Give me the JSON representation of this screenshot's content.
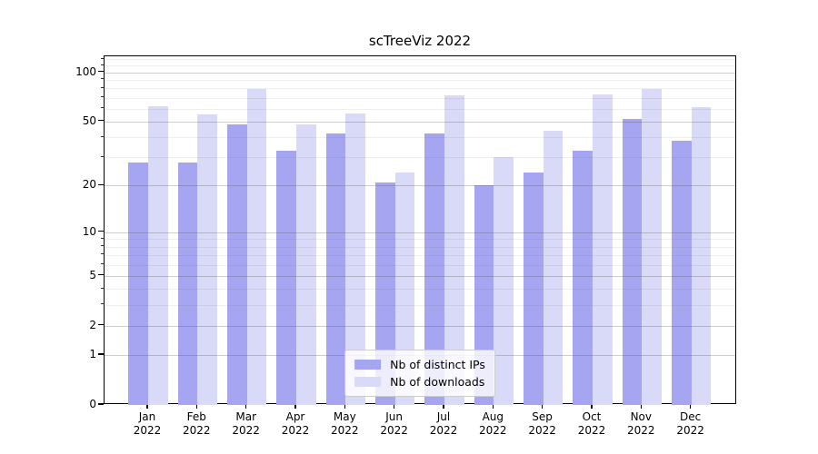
{
  "chart_data": {
    "type": "bar",
    "title": "scTreeViz 2022",
    "categories": [
      "Jan",
      "Feb",
      "Mar",
      "Apr",
      "May",
      "Jun",
      "Jul",
      "Aug",
      "Sep",
      "Oct",
      "Nov",
      "Dec"
    ],
    "year_label": "2022",
    "series": [
      {
        "name": "Nb of distinct IPs",
        "color": "#a5a5f1",
        "values": [
          28,
          28,
          48,
          33,
          42,
          21,
          42,
          20,
          24,
          33,
          52,
          38
        ]
      },
      {
        "name": "Nb of downloads",
        "color": "#d9d9f8",
        "values": [
          62,
          55,
          79,
          48,
          56,
          24,
          72,
          30,
          44,
          73,
          79,
          61
        ]
      }
    ],
    "xlabel": "",
    "ylabel": "",
    "yscale": "log1p",
    "ylim": [
      0,
      125
    ],
    "yticks": [
      0,
      1,
      2,
      5,
      10,
      20,
      50,
      100
    ],
    "yticks_minor": [
      3,
      4,
      6,
      7,
      8,
      9,
      30,
      40,
      60,
      70,
      80,
      90,
      110,
      120
    ],
    "grid": true,
    "legend_position": "lower center"
  }
}
